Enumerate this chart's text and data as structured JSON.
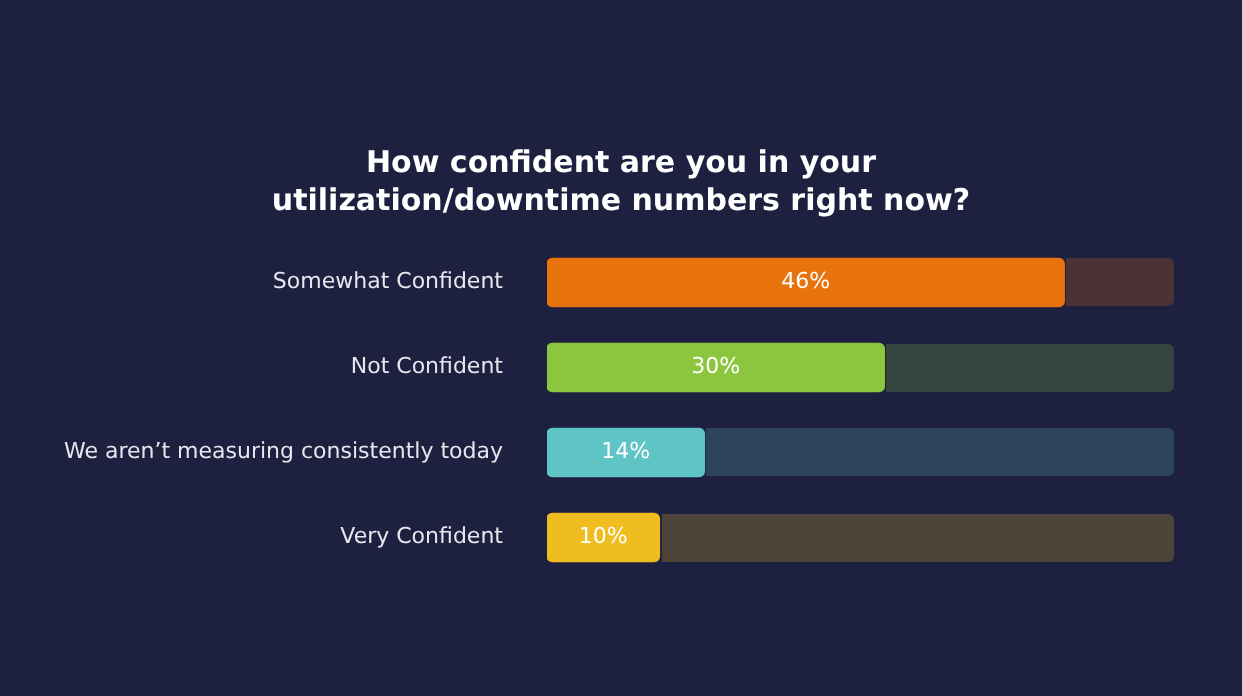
{
  "chart_data": {
    "type": "bar",
    "orientation": "horizontal",
    "title": "How confident are you in your utilization/downtime numbers right now?",
    "categories": [
      "Somewhat Confident",
      "Not Confident",
      "We aren’t measuring consistently today",
      "Very Confident"
    ],
    "values": [
      46,
      30,
      14,
      10
    ],
    "colors": [
      "#e8720c",
      "#8cc63f",
      "#5ec4c6",
      "#efbd1f"
    ],
    "value_labels": [
      "46%",
      "30%",
      "14%",
      "10%"
    ],
    "legend": false,
    "grid": false
  }
}
